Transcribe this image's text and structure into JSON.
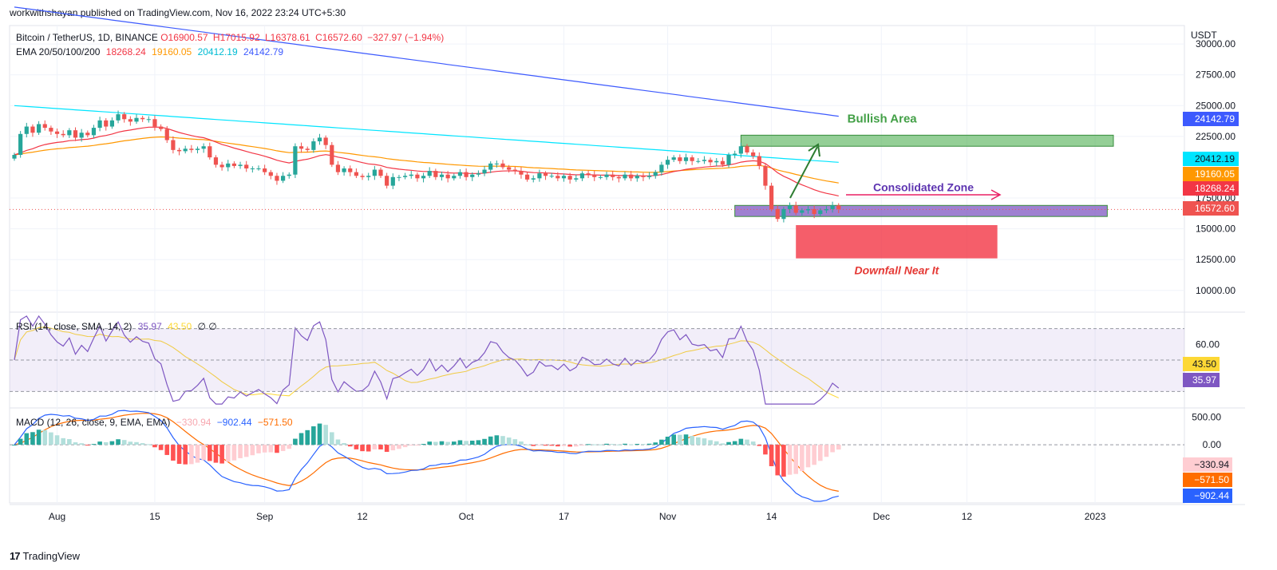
{
  "header": {
    "publisher": "workwithshayan published on TradingView.com, Nov 16, 2022 23:24 UTC+5:30",
    "symbol": "Bitcoin / TetherUS, 1D, BINANCE",
    "ohlc": {
      "o": "O16900.57",
      "h": "H17015.92",
      "l": "L16378.61",
      "c": "C16572.60",
      "chg": "−327.97 (−1.94%)"
    },
    "ema_label": "EMA 20/50/100/200",
    "ema_values": {
      "ema20": "18268.24",
      "ema50": "19160.05",
      "ema100": "20412.19",
      "ema200": "24142.79"
    }
  },
  "branding": {
    "logo": "TradingView",
    "logo_mark": "17"
  },
  "colors": {
    "up": "#26a69a",
    "down": "#ef5350",
    "ema20": "#f23645",
    "ema50": "#ff9800",
    "ema100": "#00e5ff",
    "ema200": "#3d5afe",
    "rsi": "#7e57c2",
    "rsi_ma": "#fdd835",
    "macd": "#2962ff",
    "signal": "#ff6d00"
  },
  "chart_data": [
    {
      "type": "candlestick",
      "title": "Bitcoin / TetherUS, 1D, BINANCE",
      "currency": "USDT",
      "ylim": [
        8300,
        31500
      ],
      "y_ticks": [
        "30000.00",
        "27500.00",
        "25000.00",
        "22500.00",
        "17500.00",
        "15000.00",
        "12500.00",
        "10000.00"
      ],
      "x_ticks": [
        "Aug",
        "15",
        "Sep",
        "12",
        "Oct",
        "17",
        "Nov",
        "14",
        "Dec",
        "12",
        "2023"
      ],
      "price_labels": {
        "ema200": "24142.79",
        "ema100": "20412.19",
        "ema50": "19160.05",
        "ema20": "18268.24",
        "last": "16572.60"
      },
      "close_series": [
        21000,
        22700,
        23300,
        22800,
        23500,
        23200,
        22900,
        22700,
        22600,
        23000,
        22400,
        22800,
        22600,
        23200,
        23800,
        23300,
        23800,
        24300,
        23900,
        23700,
        24000,
        23900,
        23900,
        23300,
        23100,
        22200,
        21400,
        21300,
        21500,
        21400,
        21500,
        21700,
        20800,
        20200,
        20000,
        20300,
        20100,
        20200,
        19900,
        19900,
        19900,
        19600,
        19300,
        18900,
        19300,
        19400,
        21700,
        21500,
        21400,
        22100,
        22400,
        21800,
        20200,
        19600,
        19900,
        19600,
        19300,
        19200,
        19300,
        19800,
        19300,
        18500,
        19200,
        19200,
        19300,
        19400,
        19100,
        19300,
        19700,
        19200,
        19400,
        19100,
        19300,
        19600,
        19200,
        19400,
        19500,
        19800,
        20300,
        20300,
        20000,
        19800,
        19700,
        19400,
        19000,
        19100,
        19500,
        19300,
        19300,
        19100,
        19300,
        19000,
        19100,
        19500,
        19400,
        19200,
        19200,
        19400,
        19200,
        19100,
        19400,
        19100,
        19300,
        19200,
        19300,
        19600,
        20200,
        20600,
        20800,
        20500,
        20800,
        20500,
        20500,
        20600,
        20400,
        20500,
        20200,
        21000,
        21100,
        21700,
        21200,
        20900,
        20100,
        18500,
        16600,
        15800,
        16600,
        16900,
        16300,
        16500,
        16600,
        16200,
        16500,
        16600,
        16900,
        16600
      ]
    },
    {
      "type": "line",
      "name_label": "RSI (14, close, SMA, 14, 2)",
      "series_labels": {
        "rsi": "35.97",
        "rsi_ma": "43.50"
      },
      "extra": "∅  ∅",
      "y_ticks": [
        "60.00"
      ],
      "levels": [
        70,
        50,
        30
      ],
      "ylim": [
        20,
        80
      ]
    },
    {
      "type": "line",
      "name_label": "MACD (12, 26, close, 9, EMA, EMA)",
      "series_labels": {
        "hist": "−330.94",
        "macd": "−902.44",
        "signal": "−571.50"
      },
      "y_ticks": [
        "500.00",
        "0.00"
      ],
      "ylim": [
        -1050,
        650
      ]
    }
  ],
  "annotations": {
    "bullish": {
      "label": "Bullish Area",
      "price_low": 21700,
      "price_high": 22600,
      "bar_start": 119,
      "bar_end": 180
    },
    "consolidated": {
      "label": "Consolidated Zone",
      "price_low": 16000,
      "price_high": 16900,
      "bar_start": 118,
      "bar_end": 179
    },
    "downfall": {
      "label": "Downfall Near It",
      "price_low": 12600,
      "price_high": 15300,
      "bar_start": 128,
      "bar_end": 161
    }
  }
}
